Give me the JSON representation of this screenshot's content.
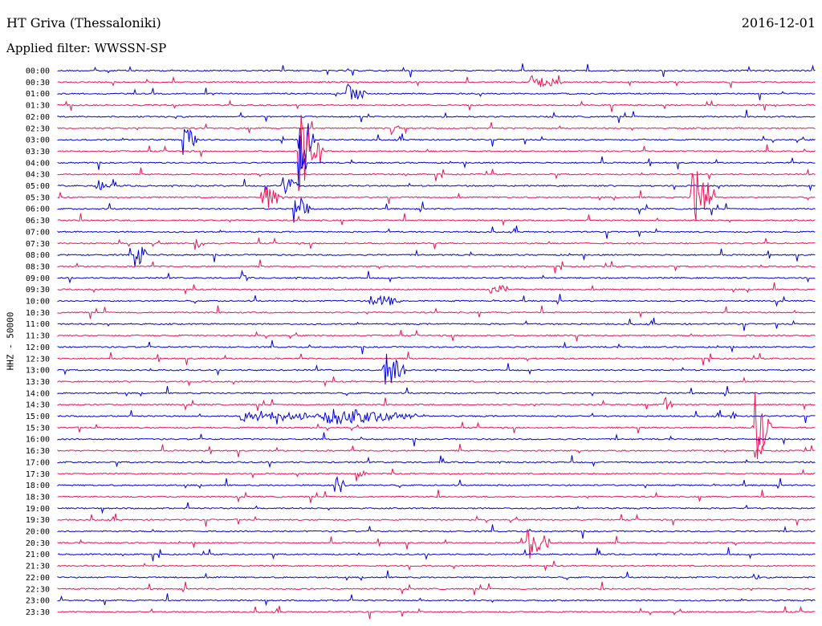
{
  "header": {
    "station": "HT Griva (Thessaloniki)",
    "date": "2016-12-01",
    "filter": "Applied filter: WWSSN-SP"
  },
  "channel_label": "HHZ - 50000",
  "colors": {
    "trace_a": "#0000dd",
    "trace_b": "#ee1155"
  },
  "rows": [
    {
      "label": "00:00",
      "color": "blue"
    },
    {
      "label": "00:30",
      "color": "red"
    },
    {
      "label": "01:00",
      "color": "blue"
    },
    {
      "label": "01:30",
      "color": "red"
    },
    {
      "label": "02:00",
      "color": "blue"
    },
    {
      "label": "02:30",
      "color": "red"
    },
    {
      "label": "03:00",
      "color": "blue"
    },
    {
      "label": "03:30",
      "color": "red"
    },
    {
      "label": "04:00",
      "color": "blue"
    },
    {
      "label": "04:30",
      "color": "red"
    },
    {
      "label": "05:00",
      "color": "blue"
    },
    {
      "label": "05:30",
      "color": "red"
    },
    {
      "label": "06:00",
      "color": "blue"
    },
    {
      "label": "06:30",
      "color": "red"
    },
    {
      "label": "07:00",
      "color": "blue"
    },
    {
      "label": "07:30",
      "color": "red"
    },
    {
      "label": "08:00",
      "color": "blue"
    },
    {
      "label": "08:30",
      "color": "red"
    },
    {
      "label": "09:00",
      "color": "blue"
    },
    {
      "label": "09:30",
      "color": "red"
    },
    {
      "label": "10:00",
      "color": "blue"
    },
    {
      "label": "10:30",
      "color": "red"
    },
    {
      "label": "11:00",
      "color": "blue"
    },
    {
      "label": "11:30",
      "color": "red"
    },
    {
      "label": "12:00",
      "color": "blue"
    },
    {
      "label": "12:30",
      "color": "red"
    },
    {
      "label": "13:00",
      "color": "blue"
    },
    {
      "label": "13:30",
      "color": "red"
    },
    {
      "label": "14:00",
      "color": "blue"
    },
    {
      "label": "14:30",
      "color": "red"
    },
    {
      "label": "15:00",
      "color": "blue"
    },
    {
      "label": "15:30",
      "color": "red"
    },
    {
      "label": "16:00",
      "color": "blue"
    },
    {
      "label": "16:30",
      "color": "red"
    },
    {
      "label": "17:00",
      "color": "blue"
    },
    {
      "label": "17:30",
      "color": "red"
    },
    {
      "label": "18:00",
      "color": "blue"
    },
    {
      "label": "18:30",
      "color": "red"
    },
    {
      "label": "19:00",
      "color": "blue"
    },
    {
      "label": "19:30",
      "color": "red"
    },
    {
      "label": "20:00",
      "color": "blue"
    },
    {
      "label": "20:30",
      "color": "red"
    },
    {
      "label": "21:00",
      "color": "blue"
    },
    {
      "label": "21:30",
      "color": "red"
    },
    {
      "label": "22:00",
      "color": "blue"
    },
    {
      "label": "22:30",
      "color": "red"
    },
    {
      "label": "23:00",
      "color": "blue"
    },
    {
      "label": "23:30",
      "color": "red"
    }
  ]
}
